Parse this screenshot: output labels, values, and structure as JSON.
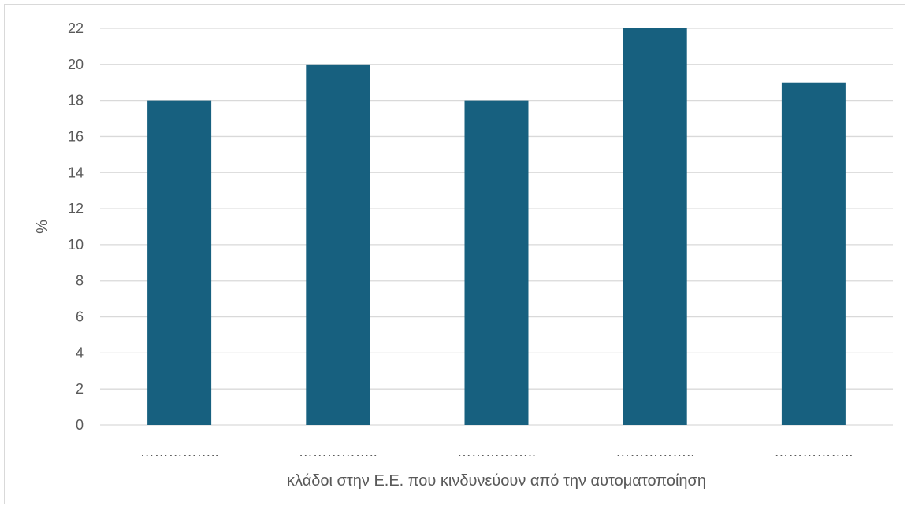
{
  "chart_data": {
    "type": "bar",
    "categories": [
      "……………..",
      "……………..",
      "……………..",
      "……………..",
      "…………….."
    ],
    "values": [
      18,
      20,
      18,
      22,
      19
    ],
    "title": "",
    "xlabel": "κλάδοι στην Ε.Ε. που κινδυνεύουν από την αυτοματοποίηση",
    "ylabel": "%",
    "ylim": [
      0,
      22
    ],
    "yticks": [
      0,
      2,
      4,
      6,
      8,
      10,
      12,
      14,
      16,
      18,
      20,
      22
    ],
    "grid": true,
    "bar_color": "#17607f",
    "grid_color": "#d9d9d9",
    "text_color": "#595959"
  }
}
